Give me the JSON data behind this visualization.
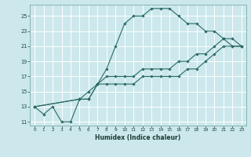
{
  "xlabel": "Humidex (Indice chaleur)",
  "bg_color": "#cce8ec",
  "grid_color": "#ffffff",
  "line_color": "#2a6b65",
  "xlim": [
    -0.5,
    23.5
  ],
  "ylim": [
    10.5,
    26.5
  ],
  "xticks": [
    0,
    1,
    2,
    3,
    4,
    5,
    6,
    7,
    8,
    9,
    10,
    11,
    12,
    13,
    14,
    15,
    16,
    17,
    18,
    19,
    20,
    21,
    22,
    23
  ],
  "yticks": [
    11,
    13,
    15,
    17,
    19,
    21,
    23,
    25
  ],
  "line1_x": [
    0,
    1,
    2,
    3,
    4,
    5,
    6,
    7,
    8,
    9,
    10,
    11,
    12,
    13,
    14,
    15,
    16,
    17,
    18,
    19,
    20,
    21,
    22,
    23
  ],
  "line1_y": [
    13,
    12,
    13,
    11,
    11,
    14,
    14,
    16,
    18,
    21,
    24,
    25,
    25,
    26,
    26,
    26,
    25,
    24,
    24,
    23,
    23,
    22,
    21,
    21
  ],
  "line2_x": [
    0,
    5,
    6,
    7,
    8,
    9,
    10,
    11,
    12,
    13,
    14,
    15,
    16,
    17,
    18,
    19,
    20,
    21,
    22,
    23
  ],
  "line2_y": [
    13,
    14,
    14,
    16,
    16,
    16,
    16,
    16,
    17,
    17,
    17,
    17,
    17,
    18,
    18,
    19,
    20,
    21,
    21,
    21
  ],
  "line3_x": [
    0,
    5,
    6,
    7,
    8,
    9,
    10,
    11,
    12,
    13,
    14,
    15,
    16,
    17,
    18,
    19,
    20,
    21,
    22,
    23
  ],
  "line3_y": [
    13,
    14,
    15,
    16,
    17,
    17,
    17,
    17,
    18,
    18,
    18,
    18,
    19,
    19,
    20,
    20,
    21,
    22,
    22,
    21
  ]
}
